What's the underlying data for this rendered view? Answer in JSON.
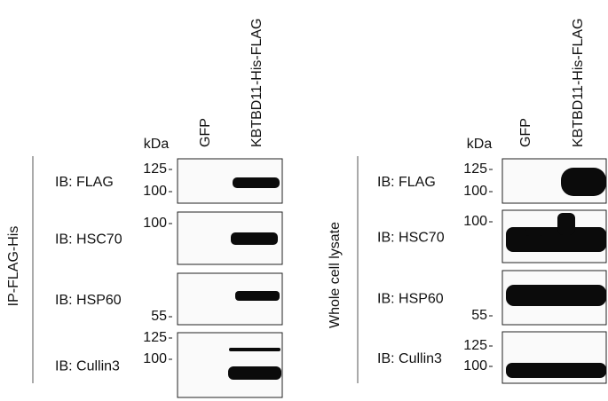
{
  "panels": [
    {
      "side_label": "IP-FLAG-His",
      "kda": "kDa",
      "lanes": [
        "GFP",
        "KBTBD11-His-FLAG"
      ],
      "blots": [
        {
          "label": "IB: FLAG",
          "markers": [
            "125",
            "100"
          ]
        },
        {
          "label": "IB: HSC70",
          "markers": [
            "100"
          ]
        },
        {
          "label": "IB: HSP60",
          "markers": [
            "55"
          ]
        },
        {
          "label": "IB: Cullin3",
          "markers": [
            "125",
            "100"
          ]
        }
      ]
    },
    {
      "side_label": "Whole cell lysate",
      "kda": "kDa",
      "lanes": [
        "GFP",
        "KBTBD11-His-FLAG"
      ],
      "blots": [
        {
          "label": "IB: FLAG",
          "markers": [
            "125",
            "100"
          ]
        },
        {
          "label": "IB: HSC70",
          "markers": [
            "100"
          ]
        },
        {
          "label": "IB: HSP60",
          "markers": [
            "55"
          ]
        },
        {
          "label": "IB: Cullin3",
          "markers": [
            "125",
            "100"
          ]
        }
      ]
    }
  ]
}
